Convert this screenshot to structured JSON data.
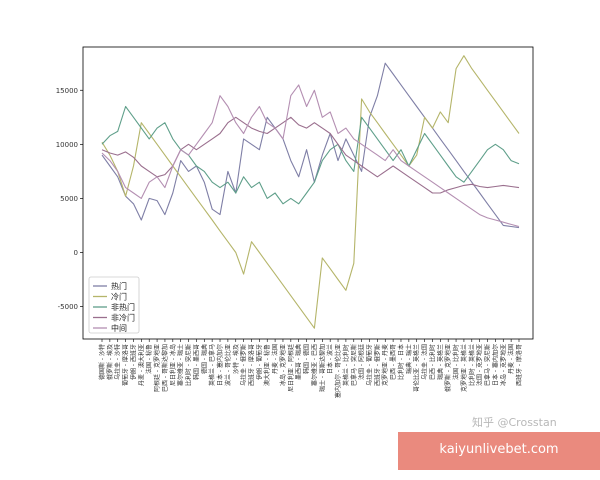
{
  "chart_data": {
    "type": "line",
    "title": "",
    "xlabel": "",
    "ylabel": "",
    "ylim": [
      -8000,
      19000
    ],
    "y_ticks": [
      -5000,
      0,
      5000,
      10000,
      15000
    ],
    "grid": false,
    "legend_position": "bottom-left",
    "categories": [
      "德国斯 - 沙特",
      "俄罗斯 - 埃及",
      "乌拉圭 - 沙特",
      "葡萄牙 - 摩洛哥",
      "伊朗 - 西班牙",
      "丹麦 - 澳大利亚",
      "法国 - 秘鲁",
      "阿根廷 - 克罗地亚",
      "巴西 - 哥斯达黎加",
      "尼日利亚 - 冰岛",
      "塞尔维亚 - 瑞士",
      "比利时 - 突尼斯",
      "韩国 - 墨西哥",
      "德国 - 瑞典",
      "英格兰 - 巴拿马",
      "日本 - 塞内加尔",
      "波兰 - 哥伦比亚",
      "沙特 - 埃及",
      "乌拉圭 - 俄罗斯",
      "西班牙 - 摩洛哥",
      "伊朗 - 葡萄牙",
      "澳大利亚 - 秘鲁",
      "丹麦 - 法国",
      "冰岛 - 克罗地亚",
      "尼日利亚 - 阿根廷",
      "墨西哥 - 瑞典",
      "韩国 - 德国",
      "塞尔维亚 - 巴西",
      "瑞士 - 哥斯达黎加",
      "日本 - 波兰",
      "塞内加尔 - 哥伦比亚",
      "英格兰 - 比利时",
      "巴拿马 - 突尼斯",
      "法国 - 阿根廷",
      "乌拉圭 - 葡萄牙",
      "西班牙 - 俄罗斯",
      "克罗地亚 - 丹麦",
      "巴西 - 墨西哥",
      "比利时 - 日本",
      "瑞典 - 瑞士",
      "哥伦比亚 - 英格兰",
      "乌拉圭 - 法国",
      "巴西 - 比利时",
      "瑞典 - 英格兰",
      "俄罗斯 - 克罗地亚",
      "法国 - 比利时",
      "克罗地亚 - 英格兰",
      "比利时 - 英格兰",
      "法国 - 克罗地亚",
      "巴拿马 - 突尼斯",
      "日本 - 塞内加尔",
      "冰岛 - 克罗地亚",
      "丹麦 - 法国",
      "西班牙 - 摩洛哥"
    ],
    "series": [
      {
        "name": "热门",
        "color": "#7f7fa6",
        "values": [
          9000,
          8000,
          7000,
          5200,
          4500,
          3000,
          5000,
          4800,
          3500,
          5500,
          8500,
          7500,
          8000,
          6500,
          4000,
          3500,
          7500,
          5500,
          10500,
          10000,
          9500,
          12500,
          11500,
          10500,
          8500,
          7000,
          9500,
          6500,
          9000,
          11000,
          8500,
          10500,
          9000,
          7500,
          12500,
          14500,
          17500,
          16500,
          15500,
          14500,
          13500,
          12500,
          11500,
          10500,
          9500,
          8500,
          7500,
          6500,
          5500,
          4500,
          3500,
          2500,
          2400,
          2300
        ]
      },
      {
        "name": "冷门",
        "color": "#b5b56a",
        "values": [
          10200,
          9000,
          7500,
          5200,
          8000,
          12000,
          11000,
          10000,
          9000,
          8000,
          7000,
          6000,
          5000,
          4000,
          3000,
          2000,
          1000,
          0,
          -2000,
          1000,
          0,
          -1000,
          -2000,
          -3000,
          -4000,
          -5000,
          -6000,
          -7000,
          -500,
          -1500,
          -2500,
          -3500,
          -1000,
          14200,
          13000,
          12000,
          11000,
          10000,
          9000,
          8000,
          9000,
          12500,
          11500,
          13000,
          12000,
          17000,
          18200,
          17000,
          16000,
          15000,
          14000,
          13000,
          12000,
          11000
        ]
      },
      {
        "name": "非热门",
        "color": "#5f9f8a",
        "values": [
          10000,
          10800,
          11200,
          13500,
          12500,
          11500,
          10500,
          11500,
          12000,
          10500,
          9500,
          9000,
          8000,
          7500,
          6500,
          6000,
          6500,
          5500,
          7000,
          6000,
          6500,
          5000,
          5500,
          4500,
          5000,
          4500,
          5500,
          6500,
          8500,
          9500,
          10000,
          8500,
          7500,
          12500,
          11500,
          10500,
          9500,
          8500,
          9500,
          8000,
          9500,
          11000,
          10000,
          9000,
          8000,
          7000,
          6500,
          7500,
          8500,
          9500,
          10000,
          9500,
          8500,
          8200
        ]
      },
      {
        "name": "非冷门",
        "color": "#9a6f8e",
        "values": [
          9500,
          9200,
          9000,
          9300,
          8800,
          8000,
          7500,
          7000,
          7200,
          8000,
          9500,
          10000,
          9500,
          10000,
          10500,
          11000,
          12000,
          12500,
          12000,
          11500,
          11200,
          11000,
          11500,
          12000,
          12500,
          11800,
          11500,
          12000,
          11500,
          11000,
          10000,
          9000,
          8500,
          8000,
          7500,
          7000,
          7500,
          8000,
          7500,
          7000,
          6500,
          6000,
          5500,
          5500,
          5800,
          6000,
          6200,
          6300,
          6100,
          6000,
          6100,
          6200,
          6100,
          6000
        ]
      },
      {
        "name": "中间",
        "color": "#b48fb2",
        "values": [
          9200,
          8500,
          7500,
          6000,
          5500,
          5000,
          6500,
          7000,
          6000,
          8000,
          9500,
          9000,
          10000,
          11000,
          12000,
          14500,
          13500,
          12000,
          11000,
          12500,
          13500,
          12000,
          11500,
          10500,
          14500,
          15500,
          13500,
          15000,
          12500,
          13000,
          11000,
          11500,
          10500,
          10000,
          9500,
          9000,
          8500,
          9500,
          8500,
          8000,
          7500,
          7000,
          6500,
          6000,
          5500,
          5000,
          4500,
          4000,
          3500,
          3200,
          3000,
          2800,
          2600,
          2400
        ]
      }
    ]
  },
  "watermark": "知乎 @Crosstan",
  "banner": {
    "text": "kaiyunlivebet.com",
    "color": "#ea8a7e"
  }
}
